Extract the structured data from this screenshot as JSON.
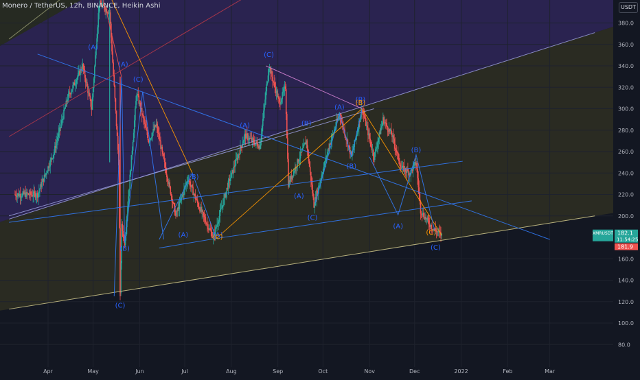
{
  "header": {
    "title": "Monero / TetherUS, 12h, BINANCE, Heikin Ashi",
    "currency": "USDT"
  },
  "price_tags": {
    "symbol": "XMRUSDT",
    "last_price": "182.1",
    "countdown": "11:54:25",
    "bid": "181.9"
  },
  "colors": {
    "background": "#131722",
    "up": "#26a69a",
    "down": "#ef5350",
    "wave_label": "#2962ff",
    "wave_label_orange": "#ff9800",
    "channel_purple": "#2a2350",
    "channel_olive": "#2a2b22",
    "axis_text": "#b2b5be",
    "price_tag": "#26a69a",
    "bid_tag": "#ef5350"
  },
  "chart_data": {
    "type": "candlestick",
    "style": "Heikin Ashi",
    "interval": "12h",
    "x_ticks": [
      "Apr",
      "May",
      "Jun",
      "Jul",
      "Aug",
      "Sep",
      "Oct",
      "Nov",
      "Dec",
      "2022",
      "Feb",
      "Mar"
    ],
    "y_ticks": [
      "80.0",
      "100.0",
      "120.0",
      "140.0",
      "160.0",
      "200.0",
      "220.0",
      "240.0",
      "260.0",
      "280.0",
      "300.0",
      "320.0",
      "340.0",
      "360.0",
      "380.0"
    ],
    "ylim": [
      65,
      397
    ],
    "grid": true,
    "anchor_prices": [
      {
        "date": "Mar 10",
        "price": 220
      },
      {
        "date": "Mar 25",
        "price": 220
      },
      {
        "date": "Apr 5",
        "price": 260
      },
      {
        "date": "Apr 14",
        "price": 310
      },
      {
        "date": "Apr 24",
        "price": 340
      },
      {
        "date": "Apr 30",
        "price": 300
      },
      {
        "date": "May 5",
        "price": 398
      },
      {
        "date": "May 12",
        "price": 390
      },
      {
        "date": "May 18",
        "price": 250
      },
      {
        "date": "May 19",
        "price": 125
      },
      {
        "date": "May 20",
        "price": 190
      },
      {
        "date": "May 22",
        "price": 175
      },
      {
        "date": "May 30",
        "price": 315
      },
      {
        "date": "Jun 7",
        "price": 270
      },
      {
        "date": "Jun 12",
        "price": 285
      },
      {
        "date": "Jun 18",
        "price": 245
      },
      {
        "date": "Jun 25",
        "price": 200
      },
      {
        "date": "Jul 3",
        "price": 235
      },
      {
        "date": "Jul 10",
        "price": 210
      },
      {
        "date": "Jul 20",
        "price": 180
      },
      {
        "date": "Jul 30",
        "price": 230
      },
      {
        "date": "Aug 10",
        "price": 275
      },
      {
        "date": "Aug 20",
        "price": 265
      },
      {
        "date": "Aug 26",
        "price": 340
      },
      {
        "date": "Sep 2",
        "price": 305
      },
      {
        "date": "Sep 6",
        "price": 320
      },
      {
        "date": "Sep 8",
        "price": 230
      },
      {
        "date": "Sep 20",
        "price": 270
      },
      {
        "date": "Sep 25",
        "price": 210
      },
      {
        "date": "Oct 5",
        "price": 265
      },
      {
        "date": "Oct 12",
        "price": 295
      },
      {
        "date": "Oct 20",
        "price": 255
      },
      {
        "date": "Oct 27",
        "price": 300
      },
      {
        "date": "Nov 4",
        "price": 255
      },
      {
        "date": "Nov 10",
        "price": 290
      },
      {
        "date": "Nov 16",
        "price": 275
      },
      {
        "date": "Nov 22",
        "price": 245
      },
      {
        "date": "Nov 28",
        "price": 240
      },
      {
        "date": "Dec 2",
        "price": 250
      },
      {
        "date": "Dec 5",
        "price": 205
      },
      {
        "date": "Dec 12",
        "price": 190
      },
      {
        "date": "Dec 19",
        "price": 182
      }
    ],
    "wave_labels": [
      {
        "text": "(A)",
        "date": "May 1",
        "price": 358,
        "color": "blue"
      },
      {
        "text": "(A)",
        "date": "May 21",
        "price": 342,
        "color": "blue"
      },
      {
        "text": "(C)",
        "date": "May 31",
        "price": 328,
        "color": "blue"
      },
      {
        "text": "(B)",
        "date": "May 22",
        "price": 170,
        "color": "blue"
      },
      {
        "text": "(C)",
        "date": "May 19",
        "price": 117,
        "color": "blue"
      },
      {
        "text": "(B)",
        "date": "Jul 7",
        "price": 237,
        "color": "blue"
      },
      {
        "text": "(A)",
        "date": "Jun 30",
        "price": 183,
        "color": "blue"
      },
      {
        "text": "(A)",
        "date": "Jul 23",
        "price": 183,
        "color": "blue"
      },
      {
        "text": "(C)",
        "date": "Jul 23",
        "price": 181,
        "color": "orange"
      },
      {
        "text": "(A)",
        "date": "Aug 10",
        "price": 285,
        "color": "blue"
      },
      {
        "text": "(C)",
        "date": "Aug 26",
        "price": 351,
        "color": "blue"
      },
      {
        "text": "(A)",
        "date": "Sep 15",
        "price": 219,
        "color": "blue"
      },
      {
        "text": "(B)",
        "date": "Sep 20",
        "price": 287,
        "color": "blue"
      },
      {
        "text": "(C)",
        "date": "Sep 24",
        "price": 199,
        "color": "blue"
      },
      {
        "text": "(A)",
        "date": "Oct 12",
        "price": 302,
        "color": "blue"
      },
      {
        "text": "(B)",
        "date": "Oct 20",
        "price": 247,
        "color": "blue"
      },
      {
        "text": "(B)",
        "date": "Oct 26",
        "price": 309,
        "color": "blue"
      },
      {
        "text": "(B)",
        "date": "Oct 26",
        "price": 306,
        "color": "orange"
      },
      {
        "text": "(A)",
        "date": "Nov 20",
        "price": 191,
        "color": "blue"
      },
      {
        "text": "(B)",
        "date": "Dec 2",
        "price": 262,
        "color": "blue"
      },
      {
        "text": "(C)",
        "date": "Dec 12",
        "price": 185,
        "color": "orange"
      },
      {
        "text": "(C)",
        "date": "Dec 15",
        "price": 171,
        "color": "blue"
      }
    ],
    "trend_lines": [
      {
        "name": "outer-lower-line",
        "color": "#c9c187",
        "points": [
          [
            "Mar 6",
            113
          ],
          [
            "Mar 31 2022",
            200
          ]
        ]
      },
      {
        "name": "outer-upper-line",
        "color": "#9598d6",
        "points": [
          [
            "Mar 6",
            197
          ],
          [
            "Mar 31 2022",
            371
          ]
        ]
      },
      {
        "name": "inner-upper-line",
        "color": "#9598d6",
        "points": [
          [
            "Mar 6",
            200
          ],
          [
            "Nov 4",
            300
          ]
        ]
      },
      {
        "name": "top-left-olive-line",
        "color": "#8b8f6a",
        "points": [
          [
            "Mar 6",
            365
          ],
          [
            "Apr 23",
            417
          ]
        ]
      },
      {
        "name": "red-upper-line",
        "color": "#b2384a",
        "points": [
          [
            "Mar 6",
            274
          ],
          [
            "Sep 1",
            422
          ]
        ]
      },
      {
        "name": "descending-blue-line",
        "color": "#3179f5",
        "points": [
          [
            "Mar 25",
            351
          ],
          [
            "Mar 1 2022",
            178
          ]
        ]
      },
      {
        "name": "rising-blue-line-1",
        "color": "#3179f5",
        "points": [
          [
            "Mar 6",
            194
          ],
          [
            "Jan 2 2022",
            251
          ]
        ]
      },
      {
        "name": "rising-blue-line-2",
        "color": "#3179f5",
        "points": [
          [
            "Jul 22",
            179
          ],
          [
            "Jan 8 2022",
            214
          ]
        ]
      },
      {
        "name": "base-blue-line",
        "color": "#3179f5",
        "points": [
          [
            "Jun 14",
            170
          ],
          [
            "Jul 22",
            179
          ]
        ]
      },
      {
        "name": "orange-line-1",
        "color": "#ff9800",
        "points": [
          [
            "Jul 22",
            179
          ],
          [
            "Oct 27",
            300
          ]
        ]
      },
      {
        "name": "orange-line-2",
        "color": "#ff9800",
        "points": [
          [
            "Oct 27",
            300
          ],
          [
            "Dec 19",
            182
          ]
        ]
      },
      {
        "name": "orange-line-3",
        "color": "#ff9800",
        "points": [
          [
            "May 13",
            403
          ],
          [
            "Jul 6",
            240
          ]
        ]
      },
      {
        "name": "pink-line-1",
        "color": "#d080d0",
        "points": [
          [
            "Aug 24",
            340
          ],
          [
            "Oct 27",
            300
          ]
        ]
      },
      {
        "name": "red-steep-line",
        "color": "#ef5350",
        "points": [
          [
            "May 20",
            329
          ],
          [
            "May 9",
            396
          ]
        ]
      }
    ],
    "zigzags": [
      {
        "name": "zigzag-may-june",
        "color": "#3179f5",
        "points": [
          [
            "May 15",
            125
          ],
          [
            "May 20",
            329
          ],
          [
            "May 22",
            175
          ],
          [
            "Jun 3",
            316
          ],
          [
            "Jun 17",
            178
          ]
        ]
      },
      {
        "name": "zigzag-june-july",
        "color": "#3179f5",
        "points": [
          [
            "Jun 14",
            178
          ],
          [
            "Jul 6",
            240
          ],
          [
            "Jul 22",
            179
          ]
        ]
      },
      {
        "name": "zigzag-nov-dec",
        "color": "#3179f5",
        "points": [
          [
            "Nov 1",
            255
          ],
          [
            "Nov 20",
            201
          ],
          [
            "Dec 2",
            257
          ],
          [
            "Dec 15",
            183
          ]
        ]
      },
      {
        "name": "zigzag-oct",
        "color": "#3179f5",
        "points": [
          [
            "Sep 26",
            212
          ],
          [
            "Oct 12",
            295
          ],
          [
            "Oct 20",
            255
          ],
          [
            "Oct 27",
            300
          ]
        ]
      }
    ]
  }
}
